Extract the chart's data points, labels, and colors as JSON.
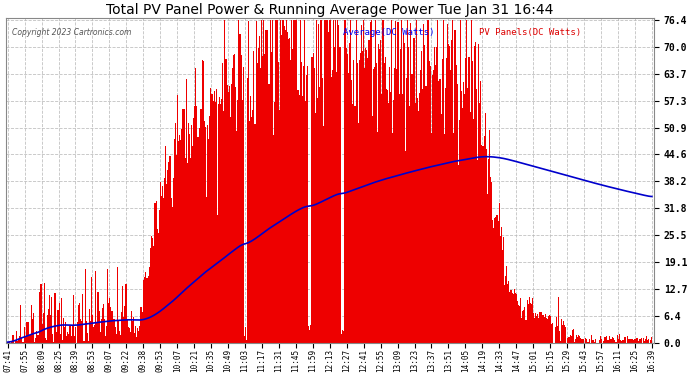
{
  "title": "Total PV Panel Power & Running Average Power Tue Jan 31 16:44",
  "copyright": "Copyright 2023 Cartronics.com",
  "ylabel_right_values": [
    0.0,
    6.4,
    12.7,
    19.1,
    25.5,
    31.8,
    38.2,
    44.6,
    50.9,
    57.3,
    63.7,
    70.0,
    76.4
  ],
  "ymax": 76.4,
  "ymin": 0.0,
  "bar_color": "#EE0000",
  "avg_color": "#0000CC",
  "background_color": "#ffffff",
  "plot_bg_color": "#ffffff",
  "grid_color": "#bbbbbb",
  "title_color": "#000000",
  "legend_avg_color": "#0000EE",
  "legend_pv_color": "#DD0000",
  "x_tick_labels": [
    "07:41",
    "07:55",
    "08:09",
    "08:25",
    "08:39",
    "08:53",
    "09:07",
    "09:22",
    "09:38",
    "09:53",
    "10:07",
    "10:21",
    "10:35",
    "10:49",
    "11:03",
    "11:17",
    "11:31",
    "11:45",
    "11:59",
    "12:13",
    "12:27",
    "12:41",
    "12:55",
    "13:09",
    "13:23",
    "13:37",
    "13:51",
    "14:05",
    "14:19",
    "14:33",
    "14:47",
    "15:01",
    "15:15",
    "15:29",
    "15:43",
    "15:57",
    "16:11",
    "16:25",
    "16:39"
  ]
}
